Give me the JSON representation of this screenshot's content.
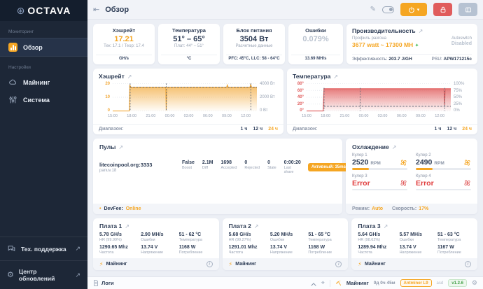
{
  "colors": {
    "accent": "#f5a623",
    "danger": "#e05c5c",
    "success": "#43a047",
    "error_text": "#e03b3b",
    "sidebar_bg": "#1d2737",
    "chart_hashrate": "#f2a93b",
    "chart_temperature": "#e05b5b"
  },
  "icons": {
    "logo": "⊛",
    "collapse": "⇤",
    "edit": "✎",
    "external": "↗",
    "gear": "⚙",
    "lightning": "⚡",
    "crosshair": "⌖",
    "spark": "✦",
    "bullet": "•",
    "chevron_down": "▾",
    "info": "i"
  },
  "app": {
    "logo_text": "OCTAVA"
  },
  "sidebar": {
    "sections": [
      {
        "label": "Мониторинг",
        "items": [
          {
            "label": "Обзор",
            "active": true
          }
        ]
      },
      {
        "label": "Настройки",
        "items": [
          {
            "label": "Майнинг"
          },
          {
            "label": "Система"
          }
        ]
      }
    ],
    "footer_items": [
      {
        "label": "Тех. поддержка"
      },
      {
        "label": "Центр обновлений"
      }
    ]
  },
  "header": {
    "title": "Обзор"
  },
  "stat_cards": [
    {
      "title": "Хэшрейт",
      "value": "17.21",
      "sub": "Тек: 17.1 / Теор: 17.4",
      "footer": "GH/s"
    },
    {
      "title": "Температура",
      "value": "51° – 65°",
      "sub": "Плат: 44° – 51°",
      "footer": "°C"
    },
    {
      "title": "Блок питания",
      "value": "3504 Вт",
      "sub": "Расчетные данные",
      "footer": "PFC: 45°C, LLC: 58 - 64°C"
    },
    {
      "title": "Ошибки",
      "value": "0.079%",
      "footer": "13.69 MH/s"
    },
    {
      "title": "Производительность",
      "profile_label": "Профиль разгона",
      "profile_value": "3677 watt ~ 17300 MH",
      "autoswitch_label": "Autoswitch",
      "autoswitch_value": "Disabled",
      "eff_label": "Эффективность:",
      "eff_value": "203.7 J/GH",
      "psu_label": "PSU:",
      "psu_value": "APW171215c"
    }
  ],
  "range_selector": {
    "label": "Диапазон:",
    "options": [
      "1 ч",
      "12 ч",
      "24 ч"
    ],
    "active": "24 ч"
  },
  "chart_data": [
    {
      "id": "hashrate",
      "type": "area",
      "title": "Хэшрейт",
      "color": "#f2a93b",
      "x_ticks": [
        "15:00",
        "18:00",
        "21:00",
        "00:00",
        "03:00",
        "06:00",
        "09:00",
        "12:00"
      ],
      "x_tick_pos": [
        0,
        0.132,
        0.264,
        0.396,
        0.527,
        0.659,
        0.791,
        0.923
      ],
      "y_left": {
        "labels": [
          "20",
          "10",
          "0"
        ],
        "values": [
          20,
          10,
          0
        ],
        "max": 20
      },
      "y_right": {
        "labels": [
          "4000 Вт",
          "2000 Вт",
          "0 Вт"
        ]
      },
      "series": [
        {
          "name": "Хэшрейт (GH/s)",
          "points": [
            [
              0,
              0
            ],
            [
              0.115,
              0
            ],
            [
              0.118,
              19
            ],
            [
              0.126,
              17.4
            ],
            [
              0.368,
              17.4
            ],
            [
              0.371,
              0.5
            ],
            [
              0.376,
              17.4
            ],
            [
              0.79,
              17.4
            ],
            [
              0.795,
              19
            ],
            [
              0.801,
              17.4
            ],
            [
              0.952,
              17.4
            ],
            [
              0.957,
              19.5
            ],
            [
              0.963,
              17.4
            ],
            [
              1,
              17.4
            ]
          ]
        }
      ],
      "dash_line": {
        "from_x": 0.12,
        "y": 17.4
      },
      "vlines": [
        0.121,
        0.371,
        0.958
      ],
      "grid": true,
      "legend": "none"
    },
    {
      "id": "temperature",
      "type": "area",
      "title": "Температура",
      "color": "#e05b5b",
      "x_ticks": [
        "15:00",
        "18:00",
        "21:00",
        "00:00",
        "03:00",
        "06:00",
        "09:00",
        "12:00"
      ],
      "x_tick_pos": [
        0,
        0.132,
        0.264,
        0.396,
        0.527,
        0.659,
        0.791,
        0.923
      ],
      "y_left": {
        "labels": [
          "80°",
          "60°",
          "40°",
          "20°",
          "0°"
        ],
        "values": [
          80,
          60,
          40,
          20,
          0
        ],
        "max": 80
      },
      "y_right": {
        "labels": [
          "100%",
          "75%",
          "50%",
          "25%",
          "0%"
        ]
      },
      "series": [
        {
          "name": "Температура (°C)",
          "points": [
            [
              0,
              0
            ],
            [
              0.115,
              0
            ],
            [
              0.12,
              65
            ],
            [
              0.953,
              65
            ],
            [
              0.957,
              18
            ],
            [
              0.961,
              65
            ],
            [
              1,
              65
            ]
          ]
        }
      ],
      "dash_line": {
        "from_x": 0.12,
        "y": 13.6
      },
      "vlines": [
        0.121,
        0.371,
        0.958
      ],
      "grid": true,
      "legend": "none"
    }
  ],
  "pools": {
    "title": "Пулы",
    "rows": [
      {
        "url": "litecoinpool.org:3333",
        "worker": "panuv.18",
        "cols": [
          {
            "value": "False",
            "label": "Boost"
          },
          {
            "value": "2.1M",
            "label": "Diff"
          },
          {
            "value": "1698",
            "label": "Accepted"
          },
          {
            "value": "0",
            "label": "Rejected"
          },
          {
            "value": "0",
            "label": "Stale"
          },
          {
            "value": "0:00:20",
            "label": "Last share"
          }
        ],
        "status_badge": "Активный: 35ms"
      }
    ],
    "devfee_label": "DevFee:",
    "devfee_value": "Online"
  },
  "cooling": {
    "title": "Охлаждение",
    "fans": [
      {
        "label": "Кулер 1",
        "value": "2520",
        "unit": "RPM",
        "error": false,
        "pct": 30
      },
      {
        "label": "Кулер 2",
        "value": "2490",
        "unit": "RPM",
        "error": false,
        "pct": 30
      },
      {
        "label": "Кулер 3",
        "value": "Error",
        "error": true,
        "pct": 0
      },
      {
        "label": "Кулер 4",
        "value": "Error",
        "error": true,
        "pct": 0
      }
    ],
    "mode_label": "Режим:",
    "mode_value": "Auto",
    "speed_label": "Скорость:",
    "speed_value": "17%"
  },
  "boards": [
    {
      "title": "Плата 1",
      "status": "Майнинг",
      "stats": [
        {
          "value": "5.78 GH/s",
          "label": "HR (99.99%)"
        },
        {
          "value": "2.90 MH/s",
          "label": "Ошибки"
        },
        {
          "value": "51 - 62 °C",
          "label": "Температура"
        },
        {
          "value": "1290.65 Mhz",
          "label": "Частота"
        },
        {
          "value": "13.74 V",
          "label": "Напряжение"
        },
        {
          "value": "1168 W",
          "label": "Потребление"
        }
      ]
    },
    {
      "title": "Плата 2",
      "status": "Майнинг",
      "stats": [
        {
          "value": "5.68 GH/s",
          "label": "HR (99.27%)"
        },
        {
          "value": "5.20 MH/s",
          "label": "Ошибки"
        },
        {
          "value": "51 - 65 °C",
          "label": "Температура"
        },
        {
          "value": "1291.01 Mhz",
          "label": "Частота"
        },
        {
          "value": "13.74 V",
          "label": "Напряжение"
        },
        {
          "value": "1168 W",
          "label": "Потребление"
        }
      ]
    },
    {
      "title": "Плата 3",
      "status": "Майнинг",
      "stats": [
        {
          "value": "5.64 GH/s",
          "label": "HR (98.62%)"
        },
        {
          "value": "5.57 MH/s",
          "label": "Ошибки"
        },
        {
          "value": "51 - 63 °C",
          "label": "Температура"
        },
        {
          "value": "1289.94 Mhz",
          "label": "Частота"
        },
        {
          "value": "13.74 V",
          "label": "Напряжение"
        },
        {
          "value": "1167 W",
          "label": "Потребление"
        }
      ]
    }
  ],
  "statusbar": {
    "logs_label": "Логи",
    "miner_state": "Майнинг",
    "uptime": "0д 0ч 45м",
    "model_badge": "Antminer L9",
    "note": "asd",
    "version": "v1.2.6"
  }
}
